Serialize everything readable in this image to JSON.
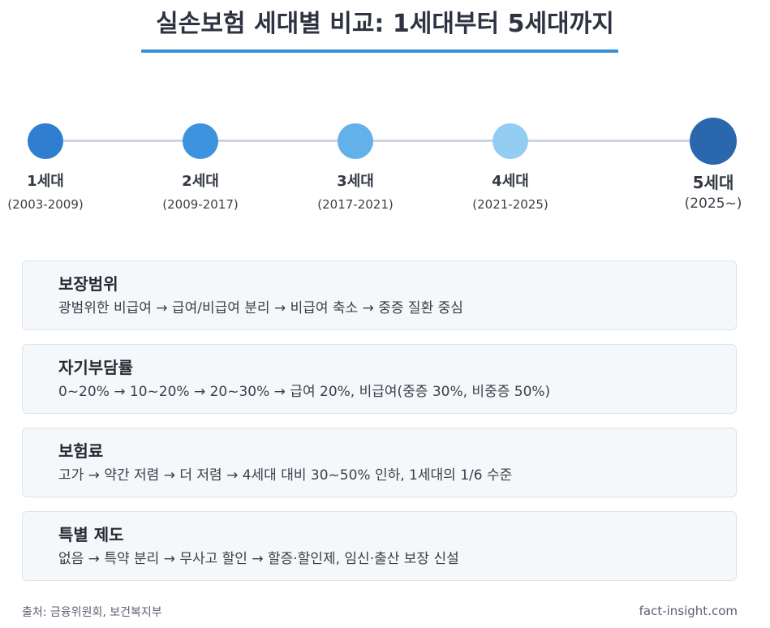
{
  "title": "실손보험 세대별 비교: 1세대부터 5세대까지",
  "timeline": [
    {
      "label": "1세대",
      "years": "(2003-2009)",
      "color": "#2f7ecf"
    },
    {
      "label": "2세대",
      "years": "(2009-2017)",
      "color": "#3d93de"
    },
    {
      "label": "3세대",
      "years": "(2017-2021)",
      "color": "#63b1ea"
    },
    {
      "label": "4세대",
      "years": "(2021-2025)",
      "color": "#93cdf4"
    },
    {
      "label": "5세대",
      "years": "(2025~)",
      "color": "#2b67ad",
      "highlighted": true
    }
  ],
  "cards": [
    {
      "title": "보장범위",
      "desc": "광범위한 비급여 → 급여/비급여 분리 → 비급여 축소 → 중증 질환 중심"
    },
    {
      "title": "자기부담률",
      "desc": "0~20% → 10~20% → 20~30% → 급여 20%, 비급여(중증 30%, 비중증 50%)"
    },
    {
      "title": "보험료",
      "desc": "고가 → 약간 저렴 → 더 저렴 → 4세대 대비 30~50% 인하, 1세대의 1/6 수준"
    },
    {
      "title": "특별 제도",
      "desc": "없음 → 특약 분리 → 무사고 할인 → 할증·할인제, 임신·출산 보장 신설"
    }
  ],
  "footer": {
    "source": "출처: 금융위원회, 보건복지부",
    "site": "fact-insight.com"
  }
}
